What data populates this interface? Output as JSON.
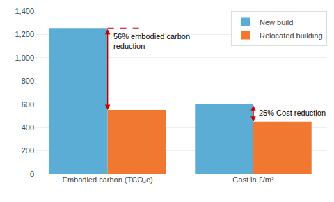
{
  "chart_data": {
    "type": "bar",
    "categories": [
      "Embodied carbon (TCO₂e)",
      "Cost in £/m²"
    ],
    "series": [
      {
        "name": "New build",
        "color": "#5badd6",
        "values": [
          1255,
          600
        ]
      },
      {
        "name": "Relocated building",
        "color": "#f07830",
        "values": [
          550,
          450
        ]
      }
    ],
    "ylim": [
      0,
      1400
    ],
    "yticks": [
      0,
      200,
      400,
      600,
      800,
      {
        "value": 1000,
        "label": "1,000"
      },
      {
        "value": 1200,
        "label": "1,200"
      },
      {
        "value": 1400,
        "label": "1,400"
      }
    ],
    "grid": true,
    "legend": "upper right",
    "annotations": [
      {
        "text": "56% embodied carbon\nreduction",
        "color": "#cc0000"
      },
      {
        "text": "25% Cost reduction",
        "color": "#cc0000"
      }
    ]
  }
}
